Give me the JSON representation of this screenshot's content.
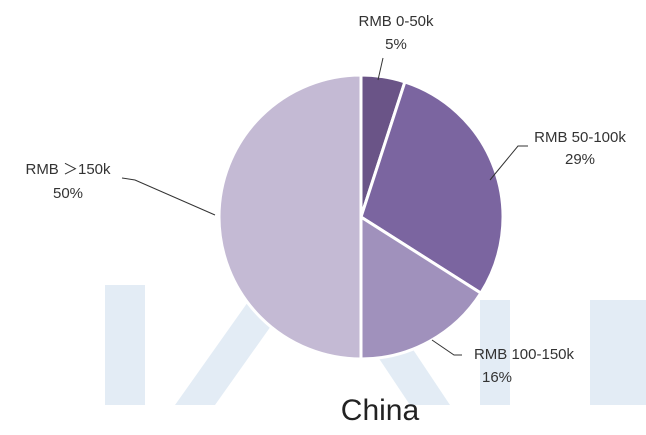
{
  "chart_data": {
    "type": "pie",
    "title": "China",
    "categories": [
      "RMB 0-50k",
      "RMB 50-100k",
      "RMB 100-150k",
      "RMB ＞150k"
    ],
    "values": [
      5,
      29,
      16,
      50
    ],
    "value_labels": [
      "5%",
      "29%",
      "16%",
      "50%"
    ],
    "colors": [
      "#6a5487",
      "#7b65a0",
      "#a091bc",
      "#c4bad4"
    ]
  }
}
